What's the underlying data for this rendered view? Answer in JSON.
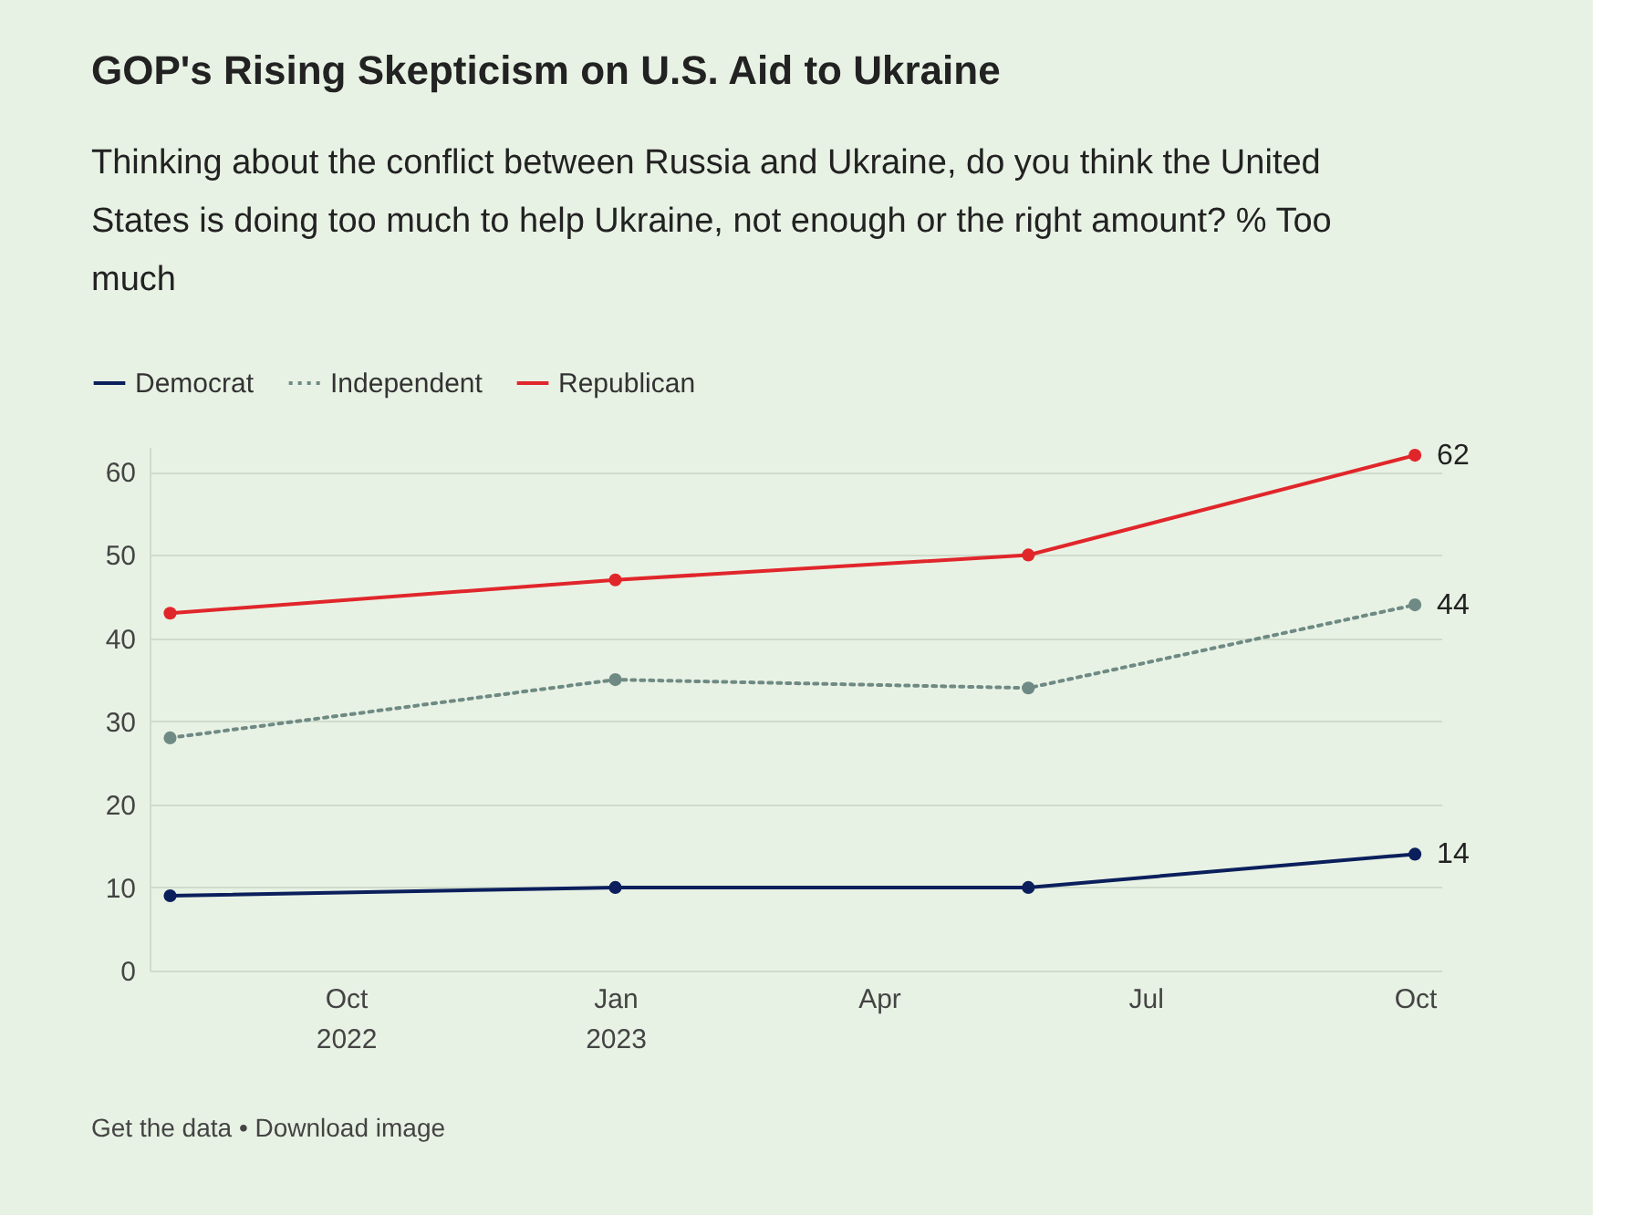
{
  "chart_data": {
    "type": "line",
    "title": "GOP's Rising Skepticism on U.S. Aid to Ukraine",
    "subtitle": "Thinking about the conflict between Russia and Ukraine, do you think the United States is doing too much to help Ukraine, not enough or the right amount? % Too much",
    "x": [
      "2022-08-02",
      "2023-01-01",
      "2023-05-22",
      "2023-10-01"
    ],
    "series": [
      {
        "name": "Democrat",
        "color": "#0b1f5c",
        "values": [
          9,
          10,
          10,
          14
        ],
        "value_labels": [
          null,
          null,
          null,
          "14"
        ],
        "line_style": "solid"
      },
      {
        "name": "Independent",
        "color": "#6f8a84",
        "values": [
          28,
          35,
          34,
          44
        ],
        "value_labels": [
          null,
          null,
          null,
          "44"
        ],
        "line_style": "dotted"
      },
      {
        "name": "Republican",
        "color": "#e0262b",
        "values": [
          43,
          47,
          50,
          62
        ],
        "value_labels": [
          null,
          null,
          null,
          "62"
        ],
        "line_style": "solid"
      }
    ],
    "xlim": [
      "2022-07-26",
      "2023-10-10"
    ],
    "xticks": [
      {
        "value": "2022-10-01",
        "label": "Oct 2022"
      },
      {
        "value": "2023-01-01",
        "label": "Jan 2023"
      },
      {
        "value": "2023-04-01",
        "label": "Apr"
      },
      {
        "value": "2023-07-01",
        "label": "Jul"
      },
      {
        "value": "2023-10-01",
        "label": "Oct"
      }
    ],
    "ylim": [
      0,
      63
    ],
    "yticks": [
      0,
      10,
      20,
      30,
      40,
      50,
      60
    ],
    "grid": "y",
    "legend": "top left",
    "marker": "circle",
    "annotations": [
      "Get the data • Download image"
    ]
  }
}
